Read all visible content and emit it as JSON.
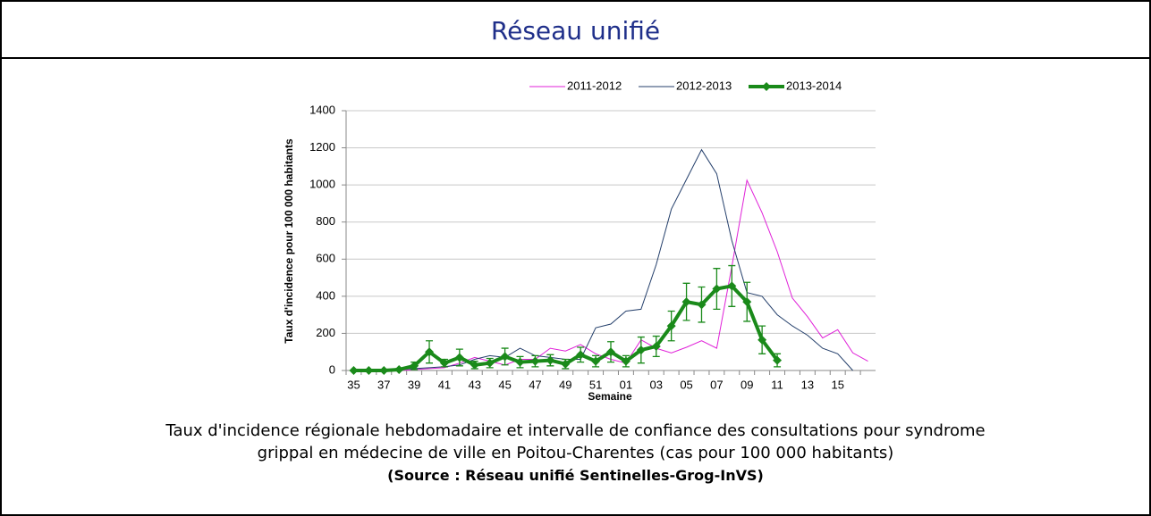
{
  "title": "Réseau unifié",
  "caption": "Taux d'incidence régionale hebdomadaire et intervalle de confiance des consultations pour syndrome grippal en médecine de ville en Poitou-Charentes (cas pour 100 000 habitants)",
  "source": "(Source : Réseau unifié Sentinelles-Grog-InVS)",
  "chart_data": {
    "type": "line",
    "ylabel": "Taux d'incidence pour 100 000 habitants",
    "xlabel": "Semaine",
    "categories": [
      "35",
      null,
      "37",
      null,
      "39",
      null,
      "41",
      null,
      "43",
      null,
      "45",
      null,
      "47",
      null,
      "49",
      null,
      "51",
      null,
      "01",
      null,
      "03",
      null,
      "05",
      null,
      "07",
      null,
      "09",
      null,
      "11",
      null,
      "13",
      null,
      "15",
      null,
      null
    ],
    "ylim": [
      0,
      1400
    ],
    "yticks": [
      0,
      200,
      400,
      600,
      800,
      1000,
      1200,
      1400
    ],
    "grid": true,
    "series": [
      {
        "name": "2011-2012",
        "color": "#e020d8",
        "width": 1,
        "values": [
          0,
          0,
          0,
          0,
          5,
          10,
          15,
          40,
          70,
          50,
          30,
          60,
          60,
          120,
          105,
          140,
          90,
          60,
          40,
          165,
          120,
          95,
          125,
          160,
          120,
          560,
          1025,
          850,
          640,
          390,
          290,
          175,
          220,
          95,
          50
        ]
      },
      {
        "name": "2012-2013",
        "color": "#243f6b",
        "width": 1,
        "values": [
          0,
          0,
          5,
          5,
          10,
          15,
          20,
          30,
          60,
          80,
          70,
          120,
          80,
          70,
          60,
          60,
          230,
          250,
          320,
          330,
          570,
          870,
          1030,
          1190,
          1060,
          700,
          420,
          400,
          300,
          240,
          190,
          120,
          90,
          0,
          null
        ]
      },
      {
        "name": "2013-2014",
        "color": "#1a8a1a",
        "width": 4,
        "markers": true,
        "values": [
          0,
          0,
          0,
          5,
          25,
          100,
          40,
          70,
          30,
          40,
          75,
          45,
          50,
          55,
          35,
          85,
          50,
          100,
          50,
          110,
          130,
          240,
          370,
          355,
          440,
          455,
          370,
          165,
          55,
          null,
          null,
          null,
          null,
          null,
          null
        ],
        "errors": [
          0,
          0,
          0,
          5,
          20,
          60,
          20,
          45,
          20,
          25,
          45,
          30,
          30,
          30,
          25,
          40,
          30,
          55,
          30,
          70,
          55,
          80,
          100,
          95,
          110,
          110,
          105,
          75,
          35,
          null,
          null,
          null,
          null,
          null,
          null
        ]
      }
    ]
  }
}
